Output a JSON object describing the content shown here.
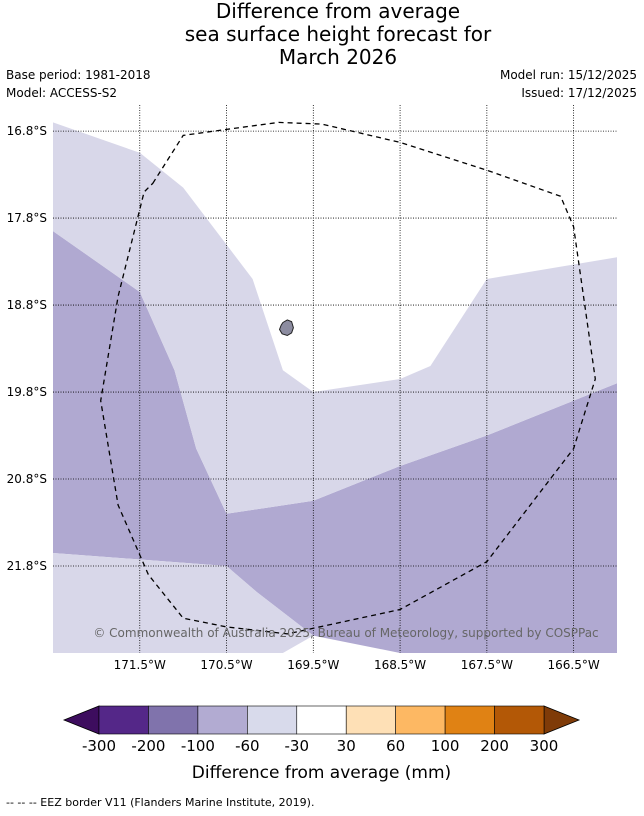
{
  "title": {
    "line1": "Difference from average",
    "line2": "sea surface height forecast for",
    "line3": "March 2026"
  },
  "meta": {
    "base_period": "Base period: 1981-2018",
    "model": "Model: ACCESS-S2",
    "model_run": "Model run: 15/12/2025",
    "issued": "Issued: 17/12/2025"
  },
  "map": {
    "lon_range": [
      -172.5,
      -166.0
    ],
    "lat_range": [
      -22.8,
      -16.5
    ],
    "lat_ticks": [
      {
        "value": -16.8,
        "label": "16.8°S"
      },
      {
        "value": -17.8,
        "label": "17.8°S"
      },
      {
        "value": -18.8,
        "label": "18.8°S"
      },
      {
        "value": -19.8,
        "label": "19.8°S"
      },
      {
        "value": -20.8,
        "label": "20.8°S"
      },
      {
        "value": -21.8,
        "label": "21.8°S"
      }
    ],
    "lon_ticks": [
      {
        "value": -171.5,
        "label": "171.5°W"
      },
      {
        "value": -170.5,
        "label": "170.5°W"
      },
      {
        "value": -169.5,
        "label": "169.5°W"
      },
      {
        "value": -168.5,
        "label": "168.5°W"
      },
      {
        "value": -167.5,
        "label": "167.5°W"
      },
      {
        "value": -166.5,
        "label": "166.5°W"
      }
    ],
    "credit": "© Commonwealth of Australia 2025, Bureau of Meteorology, supported by COSPPac",
    "regions": [
      {
        "range": "-100 to -60",
        "color": "#b0a9d1",
        "polygon": [
          [
            -172.5,
            -17.95
          ],
          [
            -171.5,
            -18.65
          ],
          [
            -171.1,
            -19.55
          ],
          [
            -170.85,
            -20.45
          ],
          [
            -170.5,
            -21.2
          ],
          [
            -169.5,
            -21.05
          ],
          [
            -168.5,
            -20.65
          ],
          [
            -167.5,
            -20.3
          ],
          [
            -166.0,
            -19.7
          ],
          [
            -166.0,
            -22.8
          ],
          [
            -168.5,
            -22.8
          ],
          [
            -169.5,
            -22.6
          ],
          [
            -170.15,
            -22.1
          ],
          [
            -170.5,
            -21.8
          ],
          [
            -172.5,
            -21.65
          ]
        ]
      },
      {
        "range": "-60 to -30",
        "color": "#d8d7e9",
        "polygon": [
          [
            -172.5,
            -16.7
          ],
          [
            -171.5,
            -17.05
          ],
          [
            -171.0,
            -17.45
          ],
          [
            -170.2,
            -18.5
          ],
          [
            -169.85,
            -19.55
          ],
          [
            -169.5,
            -19.8
          ],
          [
            -168.5,
            -19.65
          ],
          [
            -168.15,
            -19.5
          ],
          [
            -167.5,
            -18.5
          ],
          [
            -166.0,
            -18.25
          ],
          [
            -166.0,
            -19.7
          ],
          [
            -167.5,
            -20.3
          ],
          [
            -168.5,
            -20.65
          ],
          [
            -169.5,
            -21.05
          ],
          [
            -170.5,
            -21.2
          ],
          [
            -170.85,
            -20.45
          ],
          [
            -171.1,
            -19.55
          ],
          [
            -171.5,
            -18.65
          ],
          [
            -172.5,
            -17.95
          ]
        ]
      },
      {
        "range": "-60 to -30",
        "color": "#d8d7e9",
        "polygon": [
          [
            -172.5,
            -21.65
          ],
          [
            -170.5,
            -21.8
          ],
          [
            -170.15,
            -22.1
          ],
          [
            -169.5,
            -22.6
          ],
          [
            -169.85,
            -22.8
          ],
          [
            -172.5,
            -22.8
          ]
        ]
      }
    ],
    "island": [
      [
        -169.85,
        -19.0
      ],
      [
        -169.8,
        -18.97
      ],
      [
        -169.75,
        -18.99
      ],
      [
        -169.73,
        -19.06
      ],
      [
        -169.75,
        -19.12
      ],
      [
        -169.8,
        -19.15
      ],
      [
        -169.86,
        -19.13
      ],
      [
        -169.89,
        -19.08
      ],
      [
        -169.87,
        -19.03
      ]
    ],
    "eez": [
      [
        -171.35,
        -17.4
      ],
      [
        -171.0,
        -16.85
      ],
      [
        -170.5,
        -16.78
      ],
      [
        -169.9,
        -16.7
      ],
      [
        -169.4,
        -16.72
      ],
      [
        -168.5,
        -16.93
      ],
      [
        -167.5,
        -17.25
      ],
      [
        -166.65,
        -17.55
      ],
      [
        -166.5,
        -17.9
      ],
      [
        -166.25,
        -19.65
      ],
      [
        -166.5,
        -20.45
      ],
      [
        -167.5,
        -21.75
      ],
      [
        -168.5,
        -22.3
      ],
      [
        -169.8,
        -22.58
      ],
      [
        -170.5,
        -22.5
      ],
      [
        -171.0,
        -22.4
      ],
      [
        -171.4,
        -21.9
      ],
      [
        -171.75,
        -21.1
      ],
      [
        -171.95,
        -19.9
      ],
      [
        -171.75,
        -18.7
      ],
      [
        -171.45,
        -17.5
      ]
    ]
  },
  "colorbar": {
    "title": "Difference from average (mm)",
    "under_color": "#3d0d5e",
    "over_color": "#7f3b08",
    "colors": [
      "#542788",
      "#8073ac",
      "#b2abd2",
      "#d8daeb",
      "#ffffff",
      "#fee0b6",
      "#fdb863",
      "#e08214",
      "#b35806"
    ],
    "labels": [
      "-300",
      "-200",
      "-100",
      "-60",
      "-30",
      "30",
      "60",
      "100",
      "200",
      "300"
    ]
  },
  "footnote": "-- -- -- EEZ border V11 (Flanders Marine Institute, 2019)."
}
